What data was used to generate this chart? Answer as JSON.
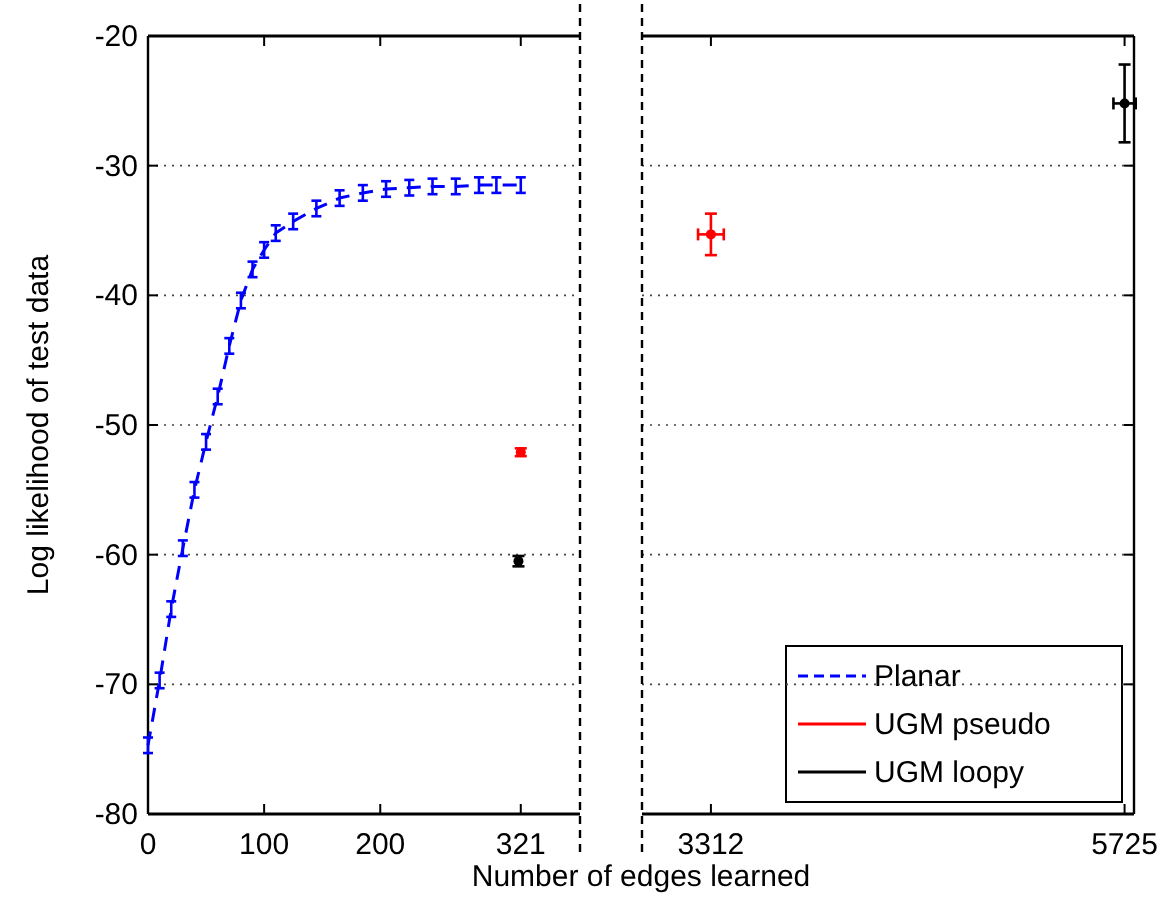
{
  "chart_data": [
    {
      "type": "line",
      "xlabel": "Number of edges learned",
      "ylabel": "Log likelihood of test data",
      "xlim": [
        0,
        372
      ],
      "xticks": [
        0,
        100,
        200,
        321
      ],
      "ylim": [
        -80,
        -20
      ],
      "yticks": [
        -80,
        -70,
        -60,
        -50,
        -40,
        -30,
        -20
      ],
      "grid": "y",
      "legend": "bottom right",
      "series": [
        {
          "name": "Planar",
          "color": "#0000ff",
          "line_style": "dashed",
          "x": [
            0,
            10,
            20,
            30,
            40,
            50,
            60,
            70,
            80,
            90,
            100,
            110,
            125,
            145,
            165,
            185,
            205,
            225,
            245,
            265,
            285,
            300,
            321
          ],
          "values": [
            -74.7,
            -69.7,
            -64.2,
            -59.5,
            -55.0,
            -51.3,
            -47.8,
            -43.9,
            -40.4,
            -38.0,
            -36.5,
            -35.2,
            -34.3,
            -33.3,
            -32.5,
            -32.1,
            -31.8,
            -31.7,
            -31.6,
            -31.6,
            -31.5,
            -31.5,
            -31.5
          ],
          "errors": [
            0.6,
            0.6,
            0.6,
            0.6,
            0.6,
            0.6,
            0.6,
            0.6,
            0.6,
            0.6,
            0.6,
            0.6,
            0.6,
            0.6,
            0.6,
            0.6,
            0.6,
            0.6,
            0.6,
            0.6,
            0.6,
            0.6,
            0.6
          ]
        },
        {
          "name": "UGM pseudo",
          "type": "scatter",
          "color": "#ff0000",
          "x": [
            321
          ],
          "values": [
            -52.1
          ],
          "errors": [
            0.3
          ]
        },
        {
          "name": "UGM loopy",
          "type": "scatter",
          "color": "#000000",
          "x": [
            319
          ],
          "values": [
            -60.5
          ],
          "errors": [
            0.4
          ]
        }
      ]
    },
    {
      "type": "scatter",
      "xlim": [
        2910,
        5780
      ],
      "xticks": [
        3312,
        5725
      ],
      "ylim": [
        -80,
        -20
      ],
      "yticks": [
        -80,
        -70,
        -60,
        -50,
        -40,
        -30,
        -20
      ],
      "grid": "y",
      "tick_labels": "x",
      "series": [
        {
          "color": "#ff0000",
          "x": [
            3312
          ],
          "values": [
            -35.3
          ],
          "errors": [
            1.6
          ],
          "xerrors": [
            75
          ]
        },
        {
          "color": "#000000",
          "x": [
            5725
          ],
          "values": [
            -25.2
          ],
          "errors": [
            3.0
          ],
          "xerrors": [
            65
          ]
        }
      ]
    }
  ]
}
